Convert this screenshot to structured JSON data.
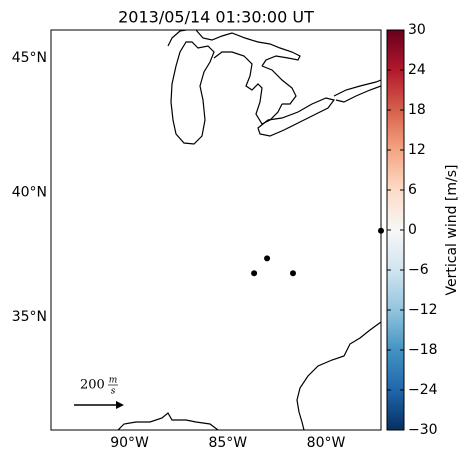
{
  "chart_data": {
    "type": "map",
    "title": "2013/05/14 01:30:00 UT",
    "xlim": [
      -94,
      -77.2
    ],
    "ylim": [
      30.2,
      46
    ],
    "xticks": [
      {
        "value": -90,
        "label": "90°W"
      },
      {
        "value": -85,
        "label": "85°W"
      },
      {
        "value": -80,
        "label": "80°W"
      }
    ],
    "yticks": [
      {
        "value": 35,
        "label": "35°N"
      },
      {
        "value": 40,
        "label": "40°N"
      },
      {
        "value": 45,
        "label": "45°N"
      }
    ],
    "points": {
      "lon": [
        -83.66,
        -83.0,
        -81.68,
        -77.2
      ],
      "lat": [
        36.8,
        37.4,
        36.8,
        38.5
      ],
      "color": "#000000"
    },
    "colorbar": {
      "label": "Vertical wind [m/s]",
      "lim": [
        -30,
        30
      ],
      "ticks": [
        {
          "value": -30,
          "label": "−30"
        },
        {
          "value": -24,
          "label": "−24"
        },
        {
          "value": -18,
          "label": "−18"
        },
        {
          "value": -12,
          "label": "−12"
        },
        {
          "value": -6,
          "label": "−6"
        },
        0,
        6,
        12,
        18,
        24,
        30
      ],
      "colors": [
        "#053061",
        "#2166ac",
        "#4393c3",
        "#92c5de",
        "#d1e5f0",
        "#f7f7f7",
        "#fddbc7",
        "#f4a582",
        "#d6604d",
        "#b2182b",
        "#67001f"
      ]
    },
    "quiver_key": {
      "label": "200",
      "unit_num": "m",
      "unit_den": "s"
    }
  }
}
